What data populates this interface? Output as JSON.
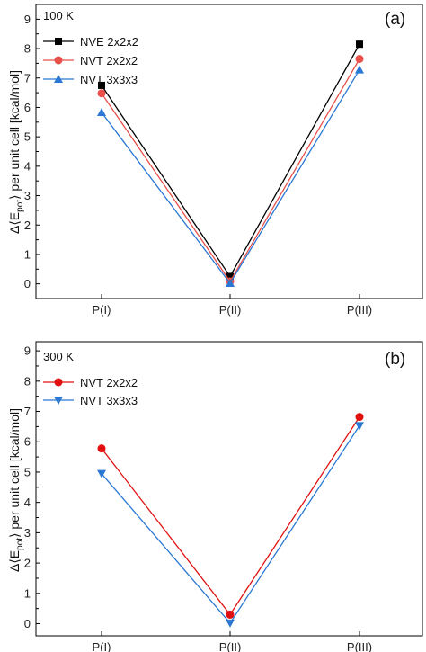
{
  "chart_data": [
    {
      "type": "line",
      "panel_label": "(a)",
      "temperature_label": "100 K",
      "ylabel": {
        "pre": "Δ⟨E",
        "sub": "pot",
        "post": "⟩ per unit cell [kcal/mol]"
      },
      "categories": [
        "P(I)",
        "P(II)",
        "P(III)"
      ],
      "ylim": [
        -0.5,
        9.5
      ],
      "yticks": [
        0,
        1,
        2,
        3,
        4,
        5,
        6,
        7,
        8,
        9
      ],
      "legend_position": "top-left",
      "grid": false,
      "series": [
        {
          "name": "NVE 2x2x2",
          "values": [
            6.75,
            0.25,
            8.15
          ],
          "color": "#000000",
          "marker": "square"
        },
        {
          "name": "NVT 2x2x2",
          "values": [
            6.48,
            0.08,
            7.65
          ],
          "color": "#e8504a",
          "marker": "circle"
        },
        {
          "name": "NVT 3x3x3",
          "values": [
            5.83,
            0.02,
            7.28
          ],
          "color": "#2a78d4",
          "marker": "triangle-up"
        }
      ]
    },
    {
      "type": "line",
      "panel_label": "(b)",
      "temperature_label": "300 K",
      "ylabel": {
        "pre": "Δ⟨E",
        "sub": "pot",
        "post": "⟩ per unit cell [kcal/mol]"
      },
      "categories": [
        "P(I)",
        "P(II)",
        "P(III)"
      ],
      "ylim": [
        -0.4,
        9.3
      ],
      "yticks": [
        0,
        1,
        2,
        3,
        4,
        5,
        6,
        7,
        8,
        9
      ],
      "legend_position": "top-left",
      "grid": false,
      "series": [
        {
          "name": "NVT 2x2x2",
          "values": [
            5.78,
            0.3,
            6.82
          ],
          "color": "#e01010",
          "marker": "circle"
        },
        {
          "name": "NVT 3x3x3",
          "values": [
            4.95,
            0.02,
            6.53
          ],
          "color": "#2a78d4",
          "marker": "triangle-down"
        }
      ]
    }
  ]
}
